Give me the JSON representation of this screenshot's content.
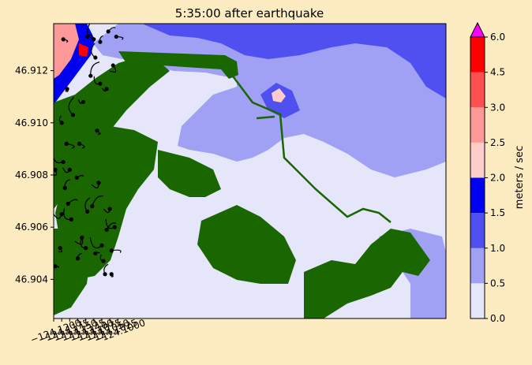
{
  "chart_data": {
    "type": "heatmap",
    "title": "5:35:00 after earthquake",
    "xlim": [
      -124.12,
      -123.9978
    ],
    "ylim": [
      46.9025,
      46.9138
    ],
    "x_ticks": [
      -124.12,
      -124.1175,
      -124.115,
      -124.1125,
      -124.11,
      -124.1075,
      -124.105,
      -124.1025,
      -124.1
    ],
    "x_tick_labels": [
      "−124.1200",
      "−124.1175",
      "−124.1150",
      "−124.1125",
      "−124.1100",
      "−124.1075",
      "−124.1050",
      "−124.1025",
      "−124.1000"
    ],
    "y_ticks": [
      46.904,
      46.906,
      46.908,
      46.91,
      46.912
    ],
    "y_tick_labels": [
      "46.904",
      "46.906",
      "46.908",
      "46.910",
      "46.912"
    ],
    "colorbar": {
      "label": "meters / sec",
      "levels": [
        0.0,
        0.5,
        1.0,
        1.5,
        2.0,
        2.5,
        3.0,
        4.5,
        6.0
      ],
      "level_labels": [
        "0.0",
        "0.5",
        "1.0",
        "1.5",
        "2.0",
        "2.5",
        "3.0",
        "4.5",
        "6.0"
      ],
      "colors": [
        "#e6e6fa",
        "#a0a0f5",
        "#5050f0",
        "#0000f0",
        "#ffcccc",
        "#ff9999",
        "#ff5050",
        "#ff0000"
      ],
      "extend_color": "#ff00ff"
    },
    "land_color": "#1a6600",
    "particles": [
      [
        -124.1195,
        46.9045
      ],
      [
        -124.118,
        46.9052
      ],
      [
        -124.1175,
        46.9065
      ],
      [
        -124.117,
        46.9085
      ],
      [
        -124.1175,
        46.91
      ],
      [
        -124.1165,
        46.9075
      ],
      [
        -124.1155,
        46.9069
      ],
      [
        -124.116,
        46.9092
      ],
      [
        -124.1158,
        46.9113
      ],
      [
        -124.115,
        46.9082
      ],
      [
        -124.1145,
        46.9063
      ],
      [
        -124.114,
        46.9103
      ],
      [
        -124.1125,
        46.9048
      ],
      [
        -124.1128,
        46.9079
      ],
      [
        -124.112,
        46.9092
      ],
      [
        -124.1112,
        46.9056
      ],
      [
        -124.1108,
        46.9108
      ],
      [
        -124.11,
        46.9052
      ],
      [
        -124.1095,
        46.9066
      ],
      [
        -124.108,
        46.9068
      ],
      [
        -124.107,
        46.905
      ],
      [
        -124.1065,
        46.9097
      ],
      [
        -124.106,
        46.9077
      ],
      [
        -124.105,
        46.9053
      ],
      [
        -124.1045,
        46.9047
      ],
      [
        -124.104,
        46.9042
      ],
      [
        -124.1035,
        46.9059
      ],
      [
        -124.102,
        46.9051
      ],
      [
        -124.102,
        46.9042
      ],
      [
        -124.1025,
        46.9067
      ],
      [
        -124.101,
        46.906
      ],
      [
        -124.1075,
        46.9132
      ],
      [
        -124.1055,
        46.9131
      ],
      [
        -124.103,
        46.9135
      ],
      [
        -124.1005,
        46.9133
      ],
      [
        -124.1015,
        46.9122
      ],
      [
        -124.1035,
        46.9113
      ],
      [
        -124.1055,
        46.9115
      ],
      [
        -124.107,
        46.9125
      ],
      [
        -124.1085,
        46.9118
      ],
      [
        -124.1095,
        46.9133
      ],
      [
        -124.117,
        46.9132
      ],
      [
        -124.1195,
        46.9082
      ]
    ]
  }
}
